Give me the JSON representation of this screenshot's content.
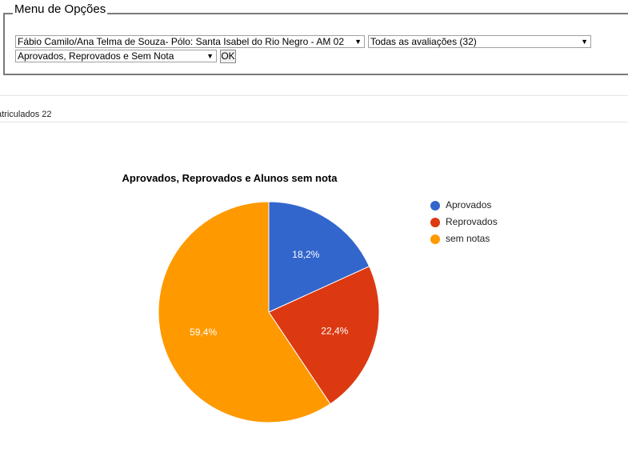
{
  "menu": {
    "legend": "Menu de Opções",
    "class_select": "Fábio Camilo/Ana Telma de Souza- Pólo: Santa Isabel do Rio Negro - AM 02",
    "evaluation_select": "Todas as avaliações (32)",
    "status_select": "Aprovados, Reprovados e Sem Nota",
    "ok_label": "OK"
  },
  "enrolled_text": "atriculados 22",
  "chart_data": {
    "type": "pie",
    "title": "Aprovados, Reprovados e Alunos sem nota",
    "slices": [
      {
        "label": "Aprovados",
        "value": 18.2,
        "value_label": "18,2%",
        "color": "#3366cc"
      },
      {
        "label": "Reprovados",
        "value": 22.4,
        "value_label": "22,4%",
        "color": "#dc3912"
      },
      {
        "label": "sem notas",
        "value": 59.4,
        "value_label": "59,4%",
        "color": "#ff9900"
      }
    ],
    "legend_position": "right"
  }
}
